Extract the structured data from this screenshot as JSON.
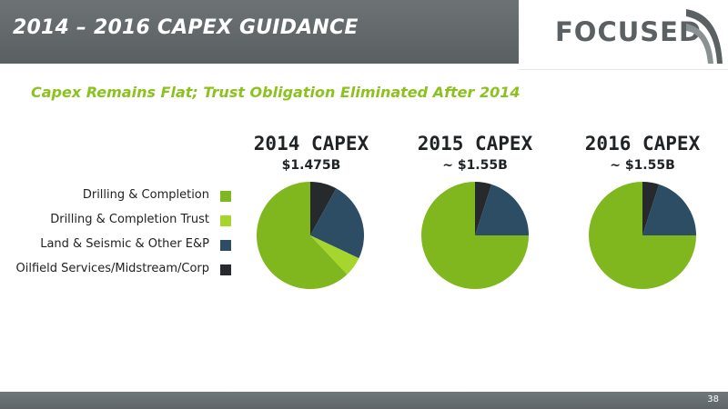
{
  "header": {
    "title": "2014 – 2016 CAPEX GUIDANCE",
    "logo_text": "FOCUSED"
  },
  "subtitle": "Capex Remains Flat; Trust Obligation Eliminated After 2014",
  "colors": {
    "drilling_completion": "#80b61e",
    "drilling_completion_trust": "#a6d52e",
    "land_seismic": "#2c4d63",
    "oilfield_services": "#262a2d",
    "header_bg": "#656b6d",
    "accent_green": "#8cc21f"
  },
  "chart_data": [
    {
      "type": "pie",
      "title": "2014 CAPEX",
      "total_label": "$1.475B",
      "categories": [
        "Drilling & Completion",
        "Drilling & Completion Trust",
        "Land & Seismic & Other E&P",
        "Oilfield Services/Midstream/Corp"
      ],
      "values": [
        62,
        6,
        24,
        8
      ]
    },
    {
      "type": "pie",
      "title": "2015 CAPEX",
      "total_label": "~ $1.55B",
      "categories": [
        "Drilling & Completion",
        "Drilling & Completion Trust",
        "Land & Seismic & Other E&P",
        "Oilfield Services/Midstream/Corp"
      ],
      "values": [
        75,
        0,
        20,
        5
      ]
    },
    {
      "type": "pie",
      "title": "2016 CAPEX",
      "total_label": "~ $1.55B",
      "categories": [
        "Drilling & Completion",
        "Drilling & Completion Trust",
        "Land & Seismic & Other E&P",
        "Oilfield Services/Midstream/Corp"
      ],
      "values": [
        75,
        0,
        20,
        5
      ]
    }
  ],
  "legend": [
    {
      "label": "Drilling & Completion",
      "color": "#80b61e"
    },
    {
      "label": "Drilling & Completion Trust",
      "color": "#a6d52e"
    },
    {
      "label": "Land & Seismic & Other E&P",
      "color": "#2c4d63"
    },
    {
      "label": "Oilfield Services/Midstream/Corp",
      "color": "#262a2d"
    }
  ],
  "footer": {
    "page_number": "38"
  }
}
